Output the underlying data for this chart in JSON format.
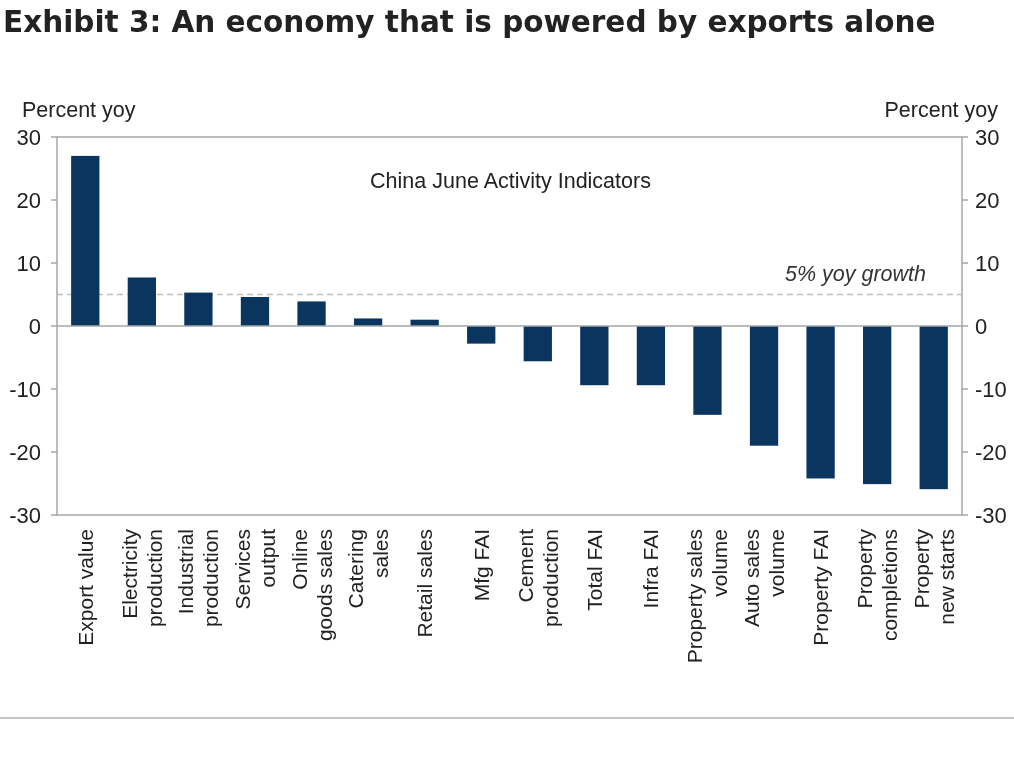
{
  "chart_data": {
    "type": "bar",
    "title": "Exhibit 3: An economy that is powered by exports alone",
    "subtitle": "China June Activity Indicators",
    "ylabel": "Percent yoy",
    "y2label": "Percent yoy",
    "categories": [
      "Export value",
      "Electricity\nproduction",
      "Industrial\nproduction",
      "Services\noutput",
      "Online\ngoods sales",
      "Catering\nsales",
      "Retail sales",
      "Mfg FAI",
      "Cement\nproduction",
      "Total FAI",
      "Infra FAI",
      "Property sales\nvolume",
      "Auto sales\nvolume",
      "Property FAI",
      "Property\ncompletions",
      "Property\nnew starts"
    ],
    "values": [
      27.0,
      7.7,
      5.3,
      4.6,
      3.9,
      1.2,
      1.0,
      -2.8,
      -5.6,
      -9.4,
      -9.4,
      -14.1,
      -19.0,
      -24.2,
      -25.1,
      -25.9
    ],
    "color": "#0a355f",
    "ylim": [
      -30,
      30
    ],
    "yticks": [
      -30,
      -20,
      -10,
      0,
      10,
      20,
      30
    ],
    "y2lim": [
      -30,
      30
    ],
    "y2ticks": [
      -30,
      -20,
      -10,
      0,
      10,
      20,
      30
    ],
    "ref_lines": [
      {
        "axis": "y",
        "value": 5,
        "label": "5% yoy growth",
        "color": "#bfbfbf",
        "line_style": "dashed"
      }
    ]
  }
}
